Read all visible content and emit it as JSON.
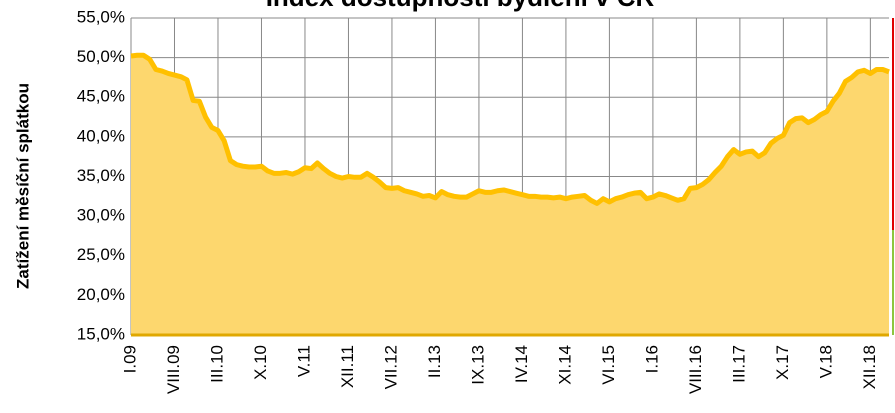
{
  "chart_data": {
    "type": "area",
    "title": "Index dostupnosti bydlení  v ČR",
    "y_label": "Zatížení měsíční splátkou",
    "categories": [
      "I.09",
      null,
      null,
      null,
      null,
      null,
      null,
      "VIII.09",
      null,
      null,
      null,
      null,
      null,
      null,
      "III.10",
      null,
      null,
      null,
      null,
      null,
      null,
      "X.10",
      null,
      null,
      null,
      null,
      null,
      null,
      "V.11",
      null,
      null,
      null,
      null,
      null,
      null,
      "XII.11",
      null,
      null,
      null,
      null,
      null,
      null,
      "VII.12",
      null,
      null,
      null,
      null,
      null,
      null,
      "II.13",
      null,
      null,
      null,
      null,
      null,
      null,
      "IX.13",
      null,
      null,
      null,
      null,
      null,
      null,
      "IV.14",
      null,
      null,
      null,
      null,
      null,
      null,
      "XI.14",
      null,
      null,
      null,
      null,
      null,
      null,
      "VI.15",
      null,
      null,
      null,
      null,
      null,
      null,
      "I.16",
      null,
      null,
      null,
      null,
      null,
      null,
      "VIII.16",
      null,
      null,
      null,
      null,
      null,
      null,
      "III.17",
      null,
      null,
      null,
      null,
      null,
      null,
      "X.17",
      null,
      null,
      null,
      null,
      null,
      null,
      "V.18",
      null,
      null,
      null,
      null,
      null,
      null,
      "XII.18",
      null,
      null,
      null
    ],
    "values": [
      50.2,
      50.3,
      50.3,
      49.8,
      48.5,
      48.3,
      48.0,
      47.8,
      47.6,
      47.2,
      44.6,
      44.5,
      42.5,
      41.2,
      40.8,
      39.5,
      37.0,
      36.5,
      36.3,
      36.2,
      36.2,
      36.3,
      35.7,
      35.4,
      35.4,
      35.5,
      35.3,
      35.6,
      36.1,
      36.0,
      36.7,
      36.0,
      35.4,
      35.0,
      34.8,
      35.0,
      34.9,
      34.9,
      35.4,
      34.9,
      34.3,
      33.6,
      33.5,
      33.6,
      33.2,
      33.0,
      32.8,
      32.5,
      32.6,
      32.3,
      33.1,
      32.7,
      32.5,
      32.4,
      32.4,
      32.8,
      33.2,
      33.0,
      33.0,
      33.2,
      33.3,
      33.1,
      32.9,
      32.7,
      32.5,
      32.5,
      32.4,
      32.4,
      32.3,
      32.4,
      32.2,
      32.4,
      32.5,
      32.6,
      32.0,
      31.6,
      32.2,
      31.8,
      32.2,
      32.4,
      32.7,
      32.9,
      33.0,
      32.2,
      32.4,
      32.8,
      32.6,
      32.3,
      32.0,
      32.2,
      33.5,
      33.6,
      34.0,
      34.6,
      35.5,
      36.3,
      37.5,
      38.4,
      37.8,
      38.1,
      38.2,
      37.5,
      38.0,
      39.2,
      39.8,
      40.2,
      41.8,
      42.3,
      42.4,
      41.8,
      42.2,
      42.8,
      43.2,
      44.5,
      45.5,
      47.0,
      47.5,
      48.2,
      48.4,
      48.0,
      48.5,
      48.5,
      48.2
    ],
    "color": "#ffc000",
    "fill_color": "#fdd76e",
    "ylim": [
      15,
      55
    ],
    "yticks": [
      {
        "value": 15,
        "label": "15,0%"
      },
      {
        "value": 20,
        "label": "20,0%"
      },
      {
        "value": 25,
        "label": "25,0%"
      },
      {
        "value": 30,
        "label": "30,0%"
      },
      {
        "value": 35,
        "label": "35,0%"
      },
      {
        "value": 40,
        "label": "40,0%"
      },
      {
        "value": 45,
        "label": "45,0%"
      },
      {
        "value": 50,
        "label": "50,0%"
      },
      {
        "value": 55,
        "label": "55,0%"
      }
    ],
    "grid": true
  }
}
